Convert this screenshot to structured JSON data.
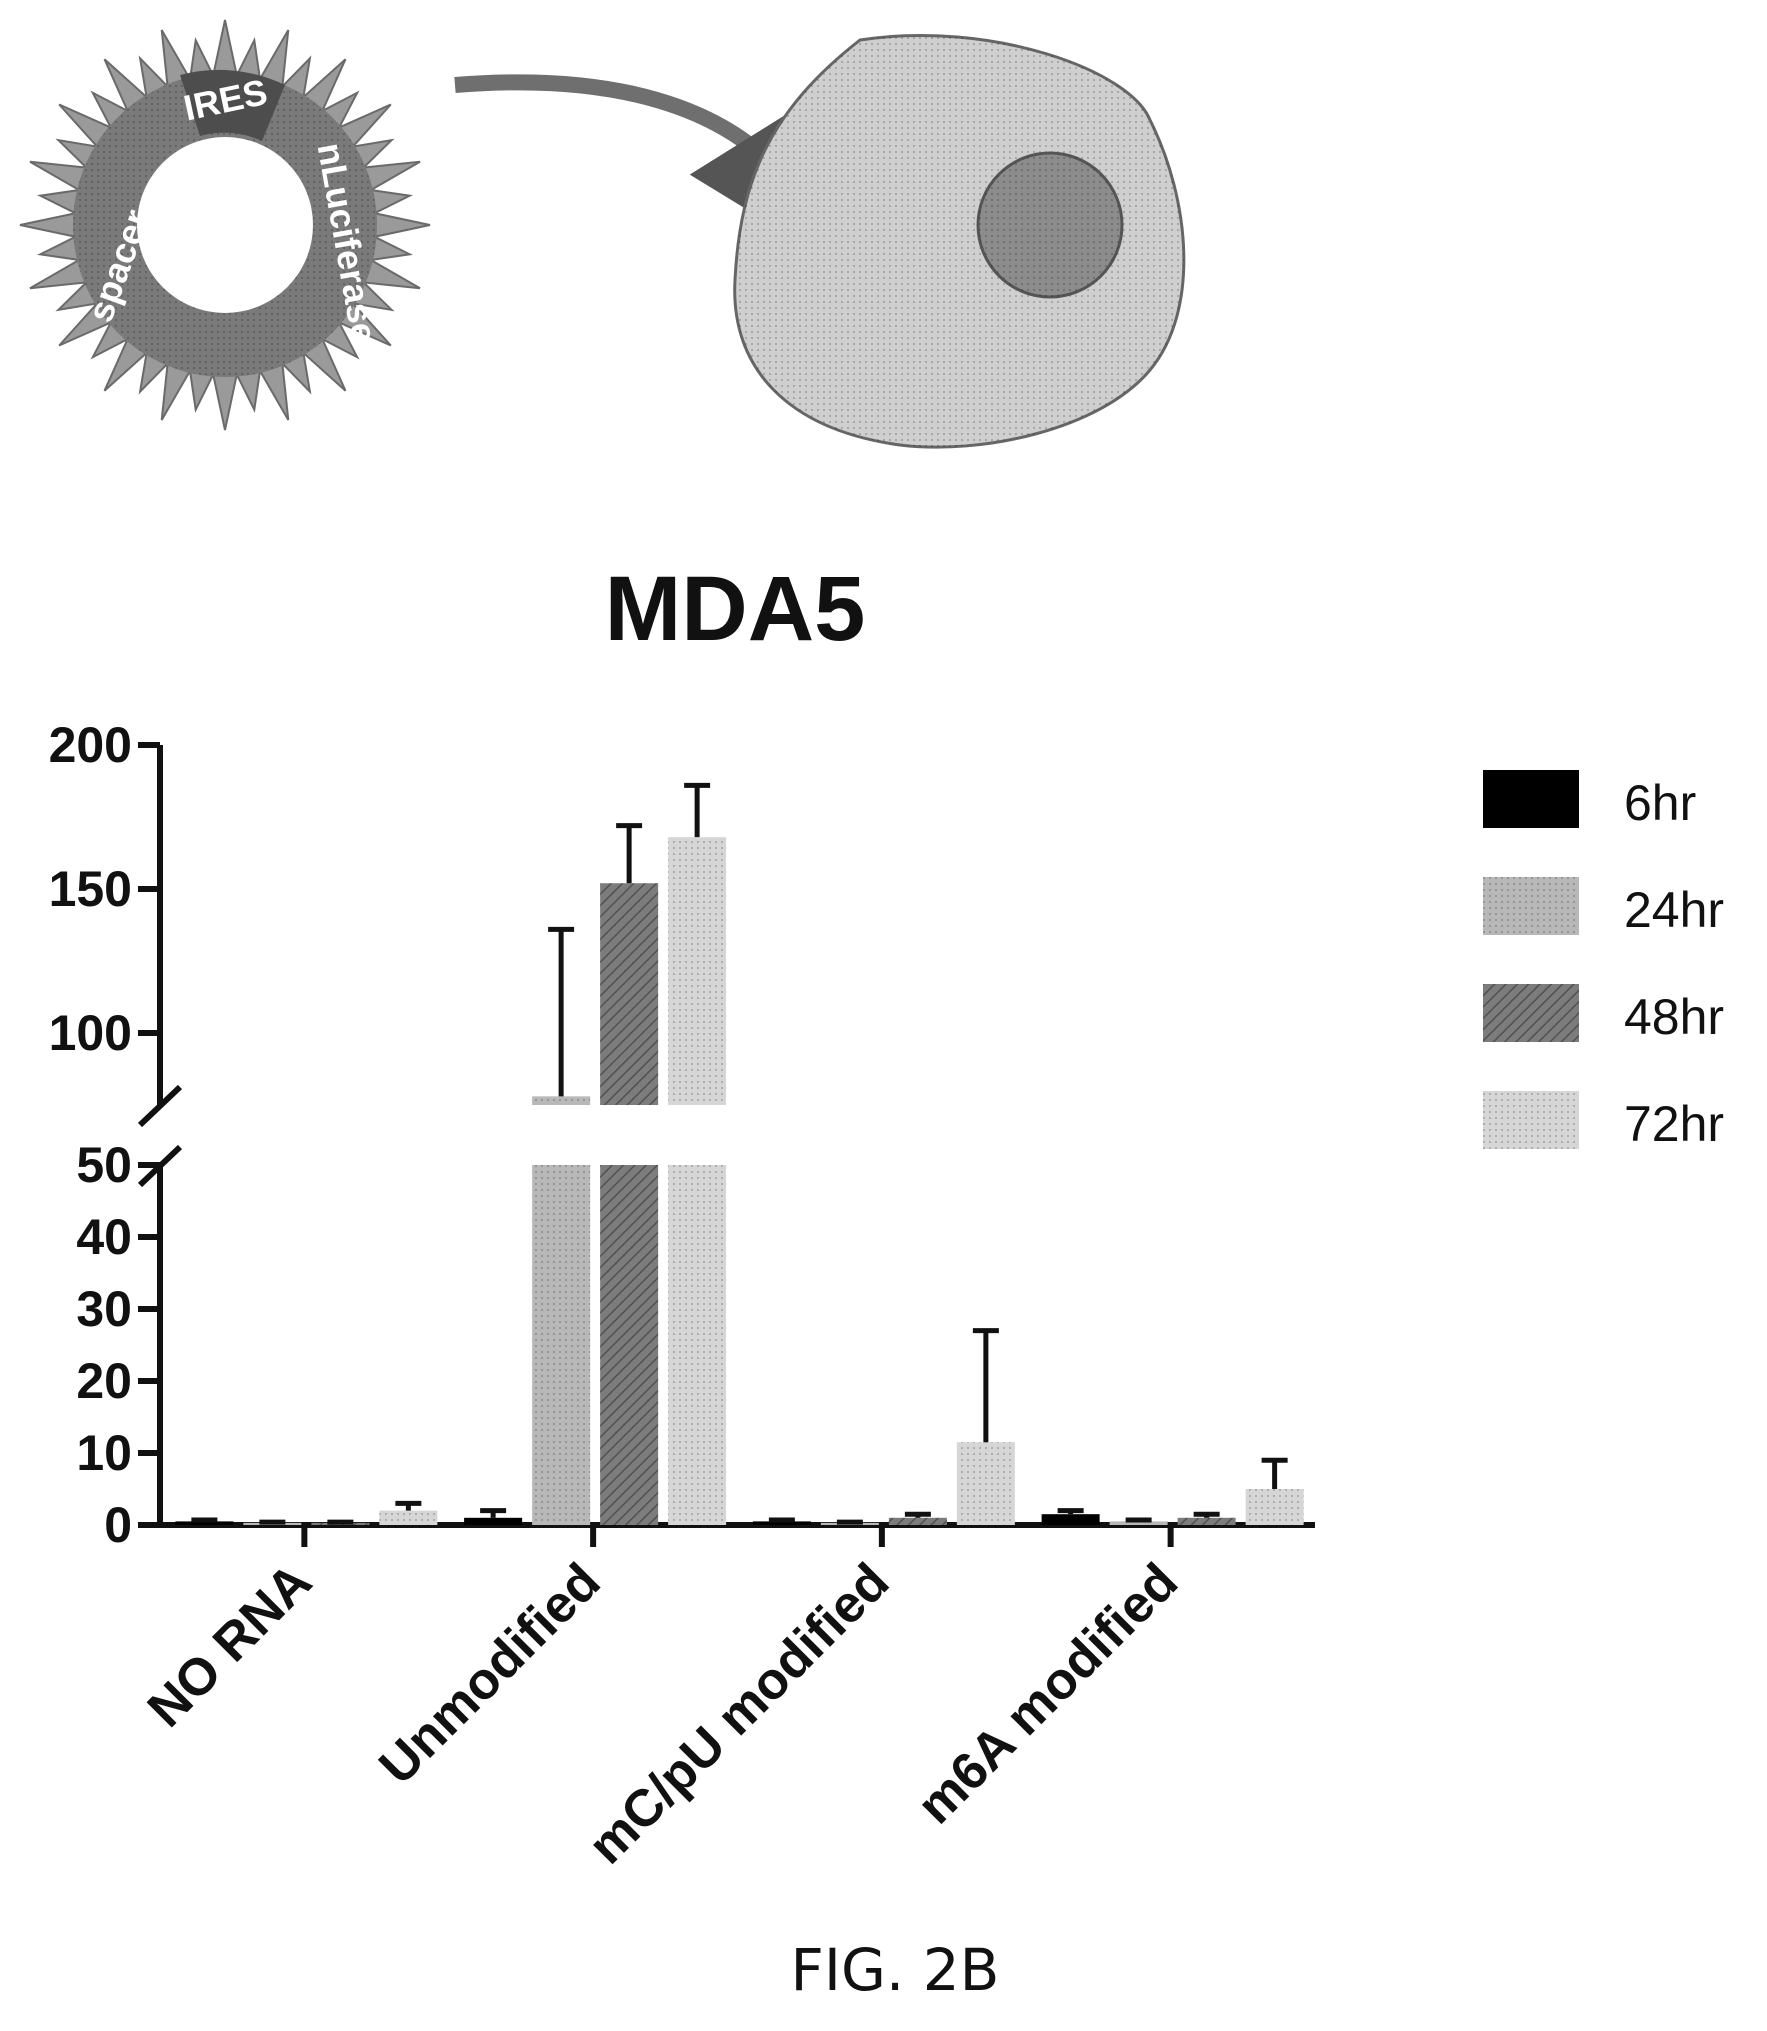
{
  "diagram": {
    "plasmid_labels": [
      "IRES",
      "nLuciferase",
      "spacer"
    ],
    "colors": {
      "plasmid_ring": "#7a7a7a",
      "cell_fill": "#cfcfcf",
      "nucleus_fill": "#8c8c8c",
      "arrow": "#6f6f6f"
    }
  },
  "chart_data": {
    "type": "bar",
    "title": "MDA5",
    "xlabel": "",
    "ylabel": "",
    "categories": [
      "NO RNA",
      "Unmodified",
      "mC/pU modified",
      "m6A modified"
    ],
    "series": [
      {
        "name": "6hr",
        "color": "#000000",
        "values": [
          0.5,
          1.0,
          0.5,
          1.5
        ],
        "errors": [
          0.2,
          1.0,
          0.2,
          0.5
        ]
      },
      {
        "name": "24hr",
        "color": "#b8b8b8",
        "values": [
          0.3,
          78,
          0.3,
          0.5
        ],
        "errors": [
          0.1,
          58,
          0.1,
          0.2
        ]
      },
      {
        "name": "48hr",
        "color": "#7c7c7c",
        "values": [
          0.3,
          152,
          1.0,
          1.0
        ],
        "errors": [
          0.1,
          20,
          0.5,
          0.5
        ]
      },
      {
        "name": "72hr",
        "color": "#d6d6d6",
        "values": [
          2.0,
          168,
          11.5,
          5.0
        ],
        "errors": [
          1.0,
          18,
          15.5,
          4.0
        ]
      }
    ],
    "axis": {
      "lower_ticks": [
        0,
        10,
        20,
        30,
        40,
        50
      ],
      "upper_ticks": [
        100,
        150,
        200
      ],
      "lower_range": [
        0,
        50
      ],
      "upper_range": [
        75,
        200
      ],
      "broken": true
    },
    "legend_position": "right",
    "grid": false
  },
  "caption": "FIG. 2B"
}
